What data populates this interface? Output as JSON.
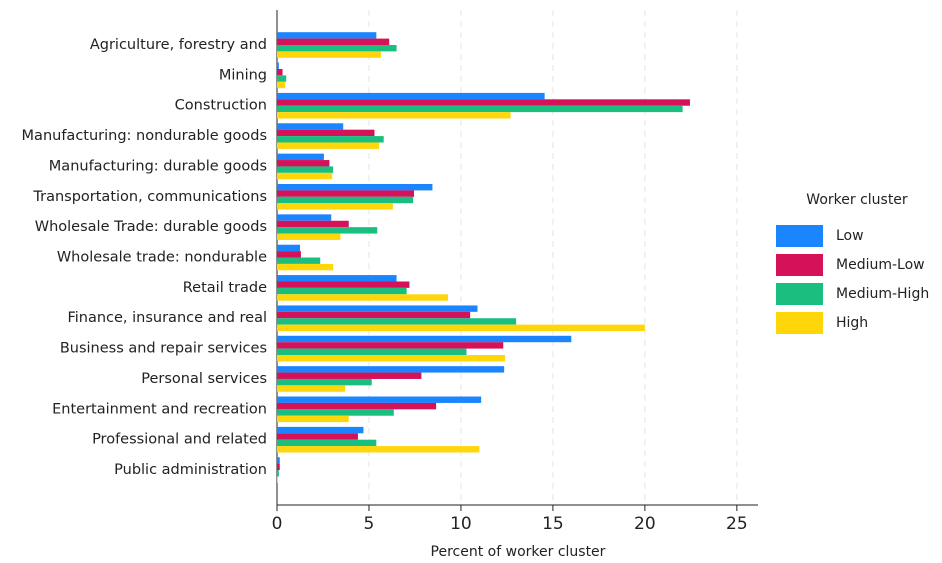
{
  "chart_data": {
    "type": "barh",
    "xlabel": "Percent of worker cluster",
    "categories": [
      "Agriculture, forestry and",
      "Mining",
      "Construction",
      "Manufacturing: nondurable goods",
      "Manufacturing: durable goods",
      "Transportation, communications",
      "Wholesale Trade: durable goods",
      "Wholesale trade: nondurable",
      "Retail trade",
      "Finance, insurance and real",
      "Business and repair services",
      "Personal services",
      "Entertainment and recreation",
      "Professional and related",
      "Public administration"
    ],
    "series": [
      {
        "name": "Low",
        "color": "#1a85ff",
        "values": [
          5.4,
          0.1,
          14.55,
          3.6,
          2.55,
          8.45,
          2.95,
          1.25,
          6.5,
          10.9,
          16.0,
          12.35,
          11.1,
          4.7,
          0.15
        ]
      },
      {
        "name": "Medium-Low",
        "color": "#d41159",
        "values": [
          6.1,
          0.3,
          22.45,
          5.3,
          2.85,
          7.45,
          3.9,
          1.3,
          7.2,
          10.5,
          12.3,
          7.85,
          8.65,
          4.4,
          0.15
        ]
      },
      {
        "name": "Medium-High",
        "color": "#1abf80",
        "values": [
          6.5,
          0.5,
          22.05,
          5.8,
          3.05,
          7.4,
          5.45,
          2.35,
          7.05,
          13.0,
          10.3,
          5.15,
          6.35,
          5.4,
          0.1
        ]
      },
      {
        "name": "High",
        "color": "#ffd60a",
        "values": [
          5.65,
          0.45,
          12.7,
          5.55,
          3.0,
          6.3,
          3.45,
          3.05,
          9.3,
          20.0,
          12.4,
          3.7,
          3.9,
          11.0,
          0.05
        ]
      }
    ],
    "xlim": [
      0,
      26.15
    ],
    "xticks": [
      0,
      5,
      10,
      15,
      20,
      25
    ],
    "grid": true,
    "legend": {
      "title": "Worker cluster",
      "position": "right"
    }
  }
}
